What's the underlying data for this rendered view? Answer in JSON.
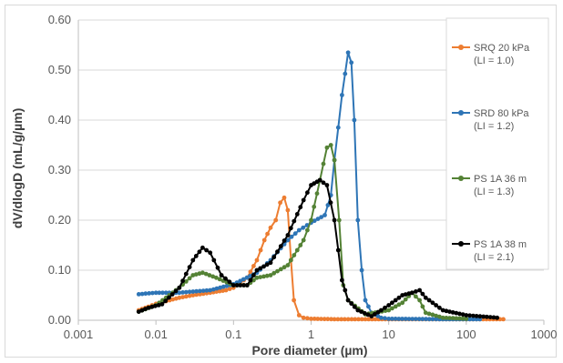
{
  "chart_data": {
    "type": "line",
    "title": "",
    "xlabel": "Pore diameter (µm)",
    "ylabel": "dV/dlogD (mL/g/µm)",
    "x_scale": "log",
    "xlim": [
      0.001,
      1000
    ],
    "ylim": [
      0,
      0.6
    ],
    "x_ticks": [
      "0.001",
      "0.01",
      "0.1",
      "1",
      "10",
      "100",
      "1000"
    ],
    "x_tick_values": [
      0.001,
      0.01,
      0.1,
      1,
      10,
      100,
      1000
    ],
    "y_ticks": [
      "0.00",
      "0.10",
      "0.20",
      "0.30",
      "0.40",
      "0.50",
      "0.60"
    ],
    "y_tick_values": [
      0,
      0.1,
      0.2,
      0.3,
      0.4,
      0.5,
      0.6
    ],
    "grid": "horizontal",
    "legend_position": "right",
    "series": [
      {
        "name": "SRQ 20 kPa",
        "name_line2": "(LI = 1.0)",
        "color": "#ED7D31",
        "points": [
          [
            0.006,
            0.02
          ],
          [
            0.008,
            0.027
          ],
          [
            0.01,
            0.033
          ],
          [
            0.015,
            0.04
          ],
          [
            0.02,
            0.045
          ],
          [
            0.03,
            0.05
          ],
          [
            0.05,
            0.055
          ],
          [
            0.08,
            0.06
          ],
          [
            0.1,
            0.065
          ],
          [
            0.15,
            0.085
          ],
          [
            0.2,
            0.12
          ],
          [
            0.25,
            0.16
          ],
          [
            0.3,
            0.185
          ],
          [
            0.35,
            0.2
          ],
          [
            0.4,
            0.235
          ],
          [
            0.45,
            0.245
          ],
          [
            0.5,
            0.22
          ],
          [
            0.55,
            0.12
          ],
          [
            0.6,
            0.04
          ],
          [
            0.7,
            0.01
          ],
          [
            0.8,
            0.005
          ],
          [
            1,
            0.003
          ],
          [
            2,
            0.002
          ],
          [
            5,
            0.002
          ],
          [
            10,
            0.002
          ],
          [
            30,
            0.002
          ],
          [
            100,
            0.002
          ],
          [
            300,
            0.002
          ]
        ]
      },
      {
        "name": "SRD 80 kPa",
        "name_line2": "(LI = 1.2)",
        "color": "#2E75B6",
        "points": [
          [
            0.006,
            0.052
          ],
          [
            0.01,
            0.055
          ],
          [
            0.02,
            0.055
          ],
          [
            0.05,
            0.06
          ],
          [
            0.1,
            0.072
          ],
          [
            0.2,
            0.095
          ],
          [
            0.3,
            0.12
          ],
          [
            0.5,
            0.16
          ],
          [
            0.7,
            0.18
          ],
          [
            1,
            0.195
          ],
          [
            1.5,
            0.21
          ],
          [
            1.8,
            0.25
          ],
          [
            2,
            0.32
          ],
          [
            2.5,
            0.45
          ],
          [
            3,
            0.535
          ],
          [
            3.3,
            0.515
          ],
          [
            3.6,
            0.4
          ],
          [
            4,
            0.2
          ],
          [
            4.5,
            0.1
          ],
          [
            5,
            0.04
          ],
          [
            6,
            0.015
          ],
          [
            8,
            0.005
          ],
          [
            10,
            0.003
          ],
          [
            50,
            0.002
          ],
          [
            150,
            0.002
          ]
        ]
      },
      {
        "name": "PS 1A 36 m",
        "name_line2": "(LI = 1.3)",
        "color": "#548235",
        "points": [
          [
            0.006,
            0.017
          ],
          [
            0.01,
            0.03
          ],
          [
            0.02,
            0.065
          ],
          [
            0.03,
            0.09
          ],
          [
            0.04,
            0.095
          ],
          [
            0.06,
            0.085
          ],
          [
            0.1,
            0.07
          ],
          [
            0.15,
            0.07
          ],
          [
            0.2,
            0.085
          ],
          [
            0.3,
            0.09
          ],
          [
            0.5,
            0.11
          ],
          [
            0.8,
            0.16
          ],
          [
            1,
            0.2
          ],
          [
            1.3,
            0.28
          ],
          [
            1.6,
            0.345
          ],
          [
            1.8,
            0.35
          ],
          [
            2,
            0.32
          ],
          [
            2.3,
            0.2
          ],
          [
            2.6,
            0.07
          ],
          [
            3,
            0.04
          ],
          [
            5,
            0.012
          ],
          [
            10,
            0.02
          ],
          [
            15,
            0.035
          ],
          [
            20,
            0.055
          ],
          [
            25,
            0.04
          ],
          [
            30,
            0.015
          ],
          [
            50,
            0.005
          ],
          [
            100,
            0.003
          ]
        ]
      },
      {
        "name": "PS 1A 38 m",
        "name_line2": "(LI = 2.1)",
        "color": "#000000",
        "points": [
          [
            0.006,
            0.017
          ],
          [
            0.008,
            0.025
          ],
          [
            0.012,
            0.032
          ],
          [
            0.02,
            0.065
          ],
          [
            0.03,
            0.12
          ],
          [
            0.04,
            0.145
          ],
          [
            0.05,
            0.135
          ],
          [
            0.07,
            0.09
          ],
          [
            0.1,
            0.07
          ],
          [
            0.15,
            0.07
          ],
          [
            0.2,
            0.1
          ],
          [
            0.3,
            0.115
          ],
          [
            0.5,
            0.17
          ],
          [
            0.8,
            0.24
          ],
          [
            1,
            0.27
          ],
          [
            1.3,
            0.28
          ],
          [
            1.6,
            0.27
          ],
          [
            2,
            0.2
          ],
          [
            2.5,
            0.08
          ],
          [
            3,
            0.04
          ],
          [
            4,
            0.02
          ],
          [
            6,
            0.008
          ],
          [
            8,
            0.02
          ],
          [
            10,
            0.03
          ],
          [
            15,
            0.05
          ],
          [
            20,
            0.055
          ],
          [
            25,
            0.06
          ],
          [
            30,
            0.045
          ],
          [
            50,
            0.02
          ],
          [
            100,
            0.01
          ],
          [
            250,
            0.005
          ]
        ]
      }
    ]
  }
}
